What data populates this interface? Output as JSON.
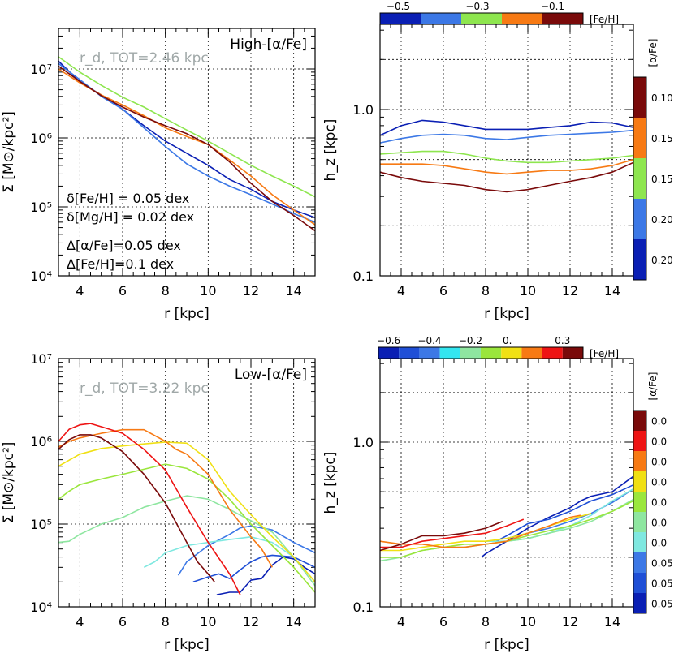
{
  "chart_data": [
    {
      "id": "p1",
      "type": "line",
      "yscale": "log",
      "xlim": [
        3,
        15
      ],
      "ylim": [
        10000,
        30000000
      ],
      "xlabel": "r [kpc]",
      "ylabel": "Σ [M⊙/kpc²]",
      "x_ticks": [
        "4",
        "6",
        "8",
        "10",
        "12",
        "14"
      ],
      "y_ticks": [
        "10⁴",
        "10⁵",
        "10⁶",
        "10⁷"
      ],
      "panel_label": "High-[α/Fe]",
      "scale_text": "r_d, TOT=2.46 kpc",
      "annotations": [
        "δ[Fe/H] = 0.05 dex",
        "δ[Mg/H] = 0.02 dex",
        "Δ[α/Fe]=0.05 dex",
        "Δ[Fe/H]=0.1 dex"
      ],
      "series": [
        {
          "name": "s1",
          "color": "#0a1fb4",
          "x": [
            3,
            4,
            5,
            6,
            7,
            8,
            9,
            10,
            11,
            12,
            13,
            14,
            15
          ],
          "y": [
            13000000,
            6500000,
            4200000,
            2600000,
            1500000,
            900000,
            600000,
            400000,
            250000,
            180000,
            120000,
            90000,
            70000
          ]
        },
        {
          "name": "s2",
          "color": "#3c78e6",
          "x": [
            3,
            4,
            5,
            6,
            7,
            8,
            9,
            10,
            11,
            12,
            13,
            14,
            15
          ],
          "y": [
            12000000,
            7000000,
            4000000,
            2600000,
            1400000,
            750000,
            420000,
            280000,
            200000,
            150000,
            110000,
            80000,
            60000
          ]
        },
        {
          "name": "s3",
          "color": "#8ee64f",
          "x": [
            3,
            4,
            5,
            6,
            7,
            8,
            9,
            10,
            11,
            12,
            13,
            14,
            15
          ],
          "y": [
            15000000,
            9000000,
            5800000,
            3900000,
            2800000,
            1900000,
            1300000,
            900000,
            600000,
            400000,
            280000,
            200000,
            140000
          ]
        },
        {
          "name": "s4",
          "color": "#f77a14",
          "x": [
            3,
            4,
            5,
            6,
            7,
            8,
            9,
            10,
            11,
            12,
            13,
            14,
            15
          ],
          "y": [
            10000000,
            6300000,
            4200000,
            3000000,
            2100000,
            1400000,
            1050000,
            800000,
            480000,
            280000,
            150000,
            90000,
            55000
          ]
        },
        {
          "name": "s5",
          "color": "#7a0a0a",
          "x": [
            3,
            4,
            5,
            6,
            7,
            8,
            9,
            10,
            11,
            12,
            13,
            14,
            15
          ],
          "y": [
            11000000,
            6600000,
            4100000,
            2800000,
            2000000,
            1500000,
            1150000,
            800000,
            450000,
            220000,
            120000,
            75000,
            45000
          ]
        }
      ]
    },
    {
      "id": "p2",
      "type": "line",
      "yscale": "log",
      "xlim": [
        3,
        15
      ],
      "ylim": [
        0.1,
        3.1
      ],
      "xlabel": "r [kpc]",
      "ylabel": "h_z [kpc]",
      "x_ticks": [
        "4",
        "6",
        "8",
        "10",
        "12",
        "14"
      ],
      "y_ticks": [
        "0.1",
        "1.0"
      ],
      "series": [
        {
          "name": "s1",
          "color": "#0a1fb4",
          "x": [
            3,
            4,
            5,
            6,
            7,
            8,
            9,
            10,
            11,
            12,
            13,
            14,
            15
          ],
          "y": [
            0.7,
            0.8,
            0.86,
            0.84,
            0.8,
            0.76,
            0.76,
            0.76,
            0.78,
            0.8,
            0.84,
            0.83,
            0.78
          ]
        },
        {
          "name": "s2",
          "color": "#3c78e6",
          "x": [
            3,
            4,
            5,
            6,
            7,
            8,
            9,
            10,
            11,
            12,
            13,
            14,
            15
          ],
          "y": [
            0.63,
            0.67,
            0.7,
            0.71,
            0.7,
            0.67,
            0.66,
            0.68,
            0.7,
            0.71,
            0.72,
            0.73,
            0.75
          ]
        },
        {
          "name": "s3",
          "color": "#8ee64f",
          "x": [
            3,
            4,
            5,
            6,
            7,
            8,
            9,
            10,
            11,
            12,
            13,
            14,
            15
          ],
          "y": [
            0.54,
            0.55,
            0.56,
            0.56,
            0.54,
            0.51,
            0.49,
            0.48,
            0.48,
            0.49,
            0.5,
            0.51,
            0.53
          ]
        },
        {
          "name": "s4",
          "color": "#f77a14",
          "x": [
            3,
            4,
            5,
            6,
            7,
            8,
            9,
            10,
            11,
            12,
            13,
            14,
            15
          ],
          "y": [
            0.47,
            0.47,
            0.47,
            0.46,
            0.44,
            0.42,
            0.41,
            0.42,
            0.43,
            0.43,
            0.44,
            0.46,
            0.5
          ]
        },
        {
          "name": "s5",
          "color": "#7a0a0a",
          "x": [
            3,
            4,
            5,
            6,
            7,
            8,
            9,
            10,
            11,
            12,
            13,
            14,
            15
          ],
          "y": [
            0.42,
            0.39,
            0.37,
            0.36,
            0.35,
            0.33,
            0.32,
            0.33,
            0.35,
            0.37,
            0.39,
            0.42,
            0.48
          ]
        }
      ],
      "colorbar_top": {
        "label": "[Fe/H]",
        "tick_labels": [
          "−0.5",
          "−0.3",
          "−0.1"
        ],
        "colors": [
          "#0a1fb4",
          "#3c78e6",
          "#8ee64f",
          "#f77a14",
          "#7a0a0a"
        ]
      },
      "colorbar_right": {
        "label": "[α/Fe]",
        "values": [
          "0.10",
          "0.15",
          "0.15",
          "0.20",
          "0.20"
        ],
        "colors": [
          "#7a0a0a",
          "#f77a14",
          "#8ee64f",
          "#3c78e6",
          "#0a1fb4"
        ]
      }
    },
    {
      "id": "p3",
      "type": "line",
      "yscale": "log",
      "xlim": [
        3,
        15
      ],
      "ylim": [
        10000,
        10000000
      ],
      "xlabel": "r [kpc]",
      "ylabel": "Σ [M⊙/kpc²]",
      "x_ticks": [
        "4",
        "6",
        "8",
        "10",
        "12",
        "14"
      ],
      "y_ticks": [
        "10⁴",
        "10⁵",
        "10⁶",
        "10⁷"
      ],
      "panel_label": "Low-[α/Fe]",
      "scale_text": "r_d, TOT=3.22 kpc",
      "series": [
        {
          "name": "s1",
          "color": "#0a1fb4",
          "x": [
            10.4,
            11,
            11.5,
            12,
            12.5,
            13,
            13.5,
            14,
            14.5,
            15
          ],
          "y": [
            14000,
            15000,
            15000,
            21000,
            22000,
            32000,
            40000,
            38000,
            30000,
            25000
          ]
        },
        {
          "name": "s2",
          "color": "#1f4fd6",
          "x": [
            9.3,
            10,
            10.5,
            11,
            11.5,
            12,
            12.5,
            13,
            14,
            15
          ],
          "y": [
            20000,
            23000,
            25000,
            22000,
            28000,
            35000,
            40000,
            42000,
            40000,
            30000
          ]
        },
        {
          "name": "s3",
          "color": "#3c78e6",
          "x": [
            8.6,
            9,
            10,
            11,
            11.5,
            12,
            13,
            14,
            15
          ],
          "y": [
            24000,
            35000,
            55000,
            75000,
            90000,
            95000,
            85000,
            60000,
            45000
          ]
        },
        {
          "name": "s4",
          "color": "#7fe8e0",
          "x": [
            7,
            7.5,
            8,
            9,
            10,
            11,
            12,
            13,
            14,
            15
          ],
          "y": [
            30000,
            35000,
            45000,
            55000,
            60000,
            65000,
            70000,
            60000,
            40000,
            20000
          ]
        },
        {
          "name": "s5",
          "color": "#8ee6a0",
          "x": [
            3,
            3.5,
            4,
            5,
            6,
            7,
            8,
            9,
            10,
            11,
            12,
            13,
            14,
            15
          ],
          "y": [
            60000,
            62000,
            75000,
            100000,
            120000,
            160000,
            190000,
            220000,
            200000,
            150000,
            110000,
            80000,
            40000,
            18000
          ]
        },
        {
          "name": "s6",
          "color": "#9ae63c",
          "x": [
            3,
            3.5,
            4,
            5,
            6,
            7,
            8,
            9,
            10,
            11,
            12,
            13,
            14,
            15
          ],
          "y": [
            200000,
            250000,
            300000,
            350000,
            400000,
            460000,
            530000,
            470000,
            350000,
            200000,
            100000,
            55000,
            30000,
            15000
          ]
        },
        {
          "name": "s7",
          "color": "#f0e014",
          "x": [
            3,
            4,
            5,
            6,
            7,
            8,
            9,
            10,
            11,
            12,
            13,
            14,
            15
          ],
          "y": [
            500000,
            700000,
            820000,
            880000,
            930000,
            980000,
            950000,
            600000,
            250000,
            130000,
            70000,
            40000,
            20000
          ]
        },
        {
          "name": "s8",
          "color": "#f77a14",
          "x": [
            3,
            3.5,
            4,
            5,
            6,
            7,
            8,
            8.5,
            9,
            10,
            11,
            12,
            12.5,
            13
          ],
          "y": [
            850000,
            1000000,
            1100000,
            1250000,
            1380000,
            1380000,
            1000000,
            800000,
            700000,
            400000,
            150000,
            70000,
            50000,
            30000
          ]
        },
        {
          "name": "s9",
          "color": "#ee1414",
          "x": [
            3,
            3.5,
            4,
            4.5,
            5,
            6,
            7,
            8,
            9,
            10,
            11,
            11.5
          ],
          "y": [
            1000000,
            1400000,
            1580000,
            1640000,
            1500000,
            1250000,
            800000,
            450000,
            160000,
            60000,
            25000,
            14000
          ]
        },
        {
          "name": "s10",
          "color": "#7a0a0a",
          "x": [
            3,
            3.5,
            4,
            4.5,
            5,
            6,
            7,
            8,
            9,
            9.5,
            10,
            10.3
          ],
          "y": [
            800000,
            1050000,
            1200000,
            1200000,
            1100000,
            750000,
            400000,
            180000,
            60000,
            35000,
            25000,
            20000
          ]
        }
      ]
    },
    {
      "id": "p4",
      "type": "line",
      "yscale": "log",
      "xlim": [
        3,
        15
      ],
      "ylim": [
        0.1,
        3.1
      ],
      "xlabel": "r [kpc]",
      "ylabel": "h_z [kpc]",
      "x_ticks": [
        "4",
        "6",
        "8",
        "10",
        "12",
        "14"
      ],
      "y_ticks": [
        "0.1",
        "1.0"
      ],
      "series": [
        {
          "name": "s1",
          "color": "#0a1fb4",
          "x": [
            7.8,
            8,
            9,
            10,
            11,
            12,
            12.5,
            13,
            14,
            15
          ],
          "y": [
            0.2,
            0.21,
            0.25,
            0.3,
            0.35,
            0.4,
            0.44,
            0.47,
            0.5,
            0.62
          ]
        },
        {
          "name": "s2",
          "color": "#1f4fd6",
          "x": [
            8.5,
            9,
            10,
            11,
            12,
            13,
            14,
            15
          ],
          "y": [
            0.25,
            0.27,
            0.32,
            0.34,
            0.38,
            0.44,
            0.48,
            0.55
          ]
        },
        {
          "name": "s3",
          "color": "#3c78e6",
          "x": [
            9,
            10,
            11,
            12,
            13,
            14,
            15
          ],
          "y": [
            0.26,
            0.28,
            0.3,
            0.33,
            0.37,
            0.43,
            0.52
          ]
        },
        {
          "name": "s4",
          "color": "#7fe8e0",
          "x": [
            8,
            9,
            10,
            11,
            12,
            13,
            14,
            15
          ],
          "y": [
            0.25,
            0.25,
            0.26,
            0.28,
            0.31,
            0.36,
            0.44,
            0.52
          ]
        },
        {
          "name": "s5",
          "color": "#8ee6a0",
          "x": [
            3,
            4,
            5,
            6,
            7,
            8,
            9,
            10,
            11,
            12,
            13,
            14,
            15
          ],
          "y": [
            0.19,
            0.2,
            0.22,
            0.23,
            0.23,
            0.24,
            0.25,
            0.26,
            0.28,
            0.3,
            0.33,
            0.38,
            0.45
          ]
        },
        {
          "name": "s6",
          "color": "#9ae63c",
          "x": [
            3,
            4,
            5,
            6,
            7,
            8,
            9,
            10,
            11,
            12,
            13,
            14,
            15
          ],
          "y": [
            0.2,
            0.2,
            0.22,
            0.23,
            0.24,
            0.24,
            0.25,
            0.27,
            0.29,
            0.31,
            0.34,
            0.38,
            0.44
          ]
        },
        {
          "name": "s7",
          "color": "#f0e014",
          "x": [
            3,
            4,
            5,
            6,
            7,
            8,
            9,
            10,
            11,
            12,
            13
          ],
          "y": [
            0.22,
            0.22,
            0.23,
            0.24,
            0.25,
            0.25,
            0.26,
            0.28,
            0.31,
            0.34,
            0.37
          ]
        },
        {
          "name": "s8",
          "color": "#f77a14",
          "x": [
            3,
            4,
            5,
            6,
            7,
            8,
            9,
            10,
            11,
            12,
            12.5
          ],
          "y": [
            0.25,
            0.24,
            0.24,
            0.23,
            0.23,
            0.24,
            0.25,
            0.28,
            0.31,
            0.35,
            0.36
          ]
        },
        {
          "name": "s9",
          "color": "#ee1414",
          "x": [
            3,
            4,
            5,
            6,
            7,
            8,
            9,
            9.8
          ],
          "y": [
            0.23,
            0.23,
            0.25,
            0.26,
            0.27,
            0.28,
            0.31,
            0.34
          ]
        },
        {
          "name": "s10",
          "color": "#7a0a0a",
          "x": [
            3,
            4,
            5,
            6,
            7,
            8,
            8.8
          ],
          "y": [
            0.22,
            0.24,
            0.27,
            0.27,
            0.28,
            0.3,
            0.33
          ]
        }
      ],
      "colorbar_top": {
        "label": "[Fe/H]",
        "tick_labels": [
          "−0.6",
          "−0.4",
          "−0.2",
          "0.",
          "0.3"
        ],
        "colors": [
          "#0a1fb4",
          "#1f4fd6",
          "#3c78e6",
          "#33e6f0",
          "#8ee6a0",
          "#9ae63c",
          "#f0e014",
          "#f77a14",
          "#ee1414",
          "#7a0a0a"
        ]
      },
      "colorbar_right": {
        "label": "[α/Fe]",
        "values": [
          "0.0",
          "0.0",
          "0.0",
          "0.0",
          "0.0",
          "0.0",
          "0.0",
          "0.05",
          "0.05",
          "0.05"
        ],
        "colors": [
          "#7a0a0a",
          "#ee1414",
          "#f77a14",
          "#f0e014",
          "#9ae63c",
          "#8ee6a0",
          "#7fe8e0",
          "#3c78e6",
          "#1f4fd6",
          "#0a1fb4"
        ]
      }
    }
  ]
}
